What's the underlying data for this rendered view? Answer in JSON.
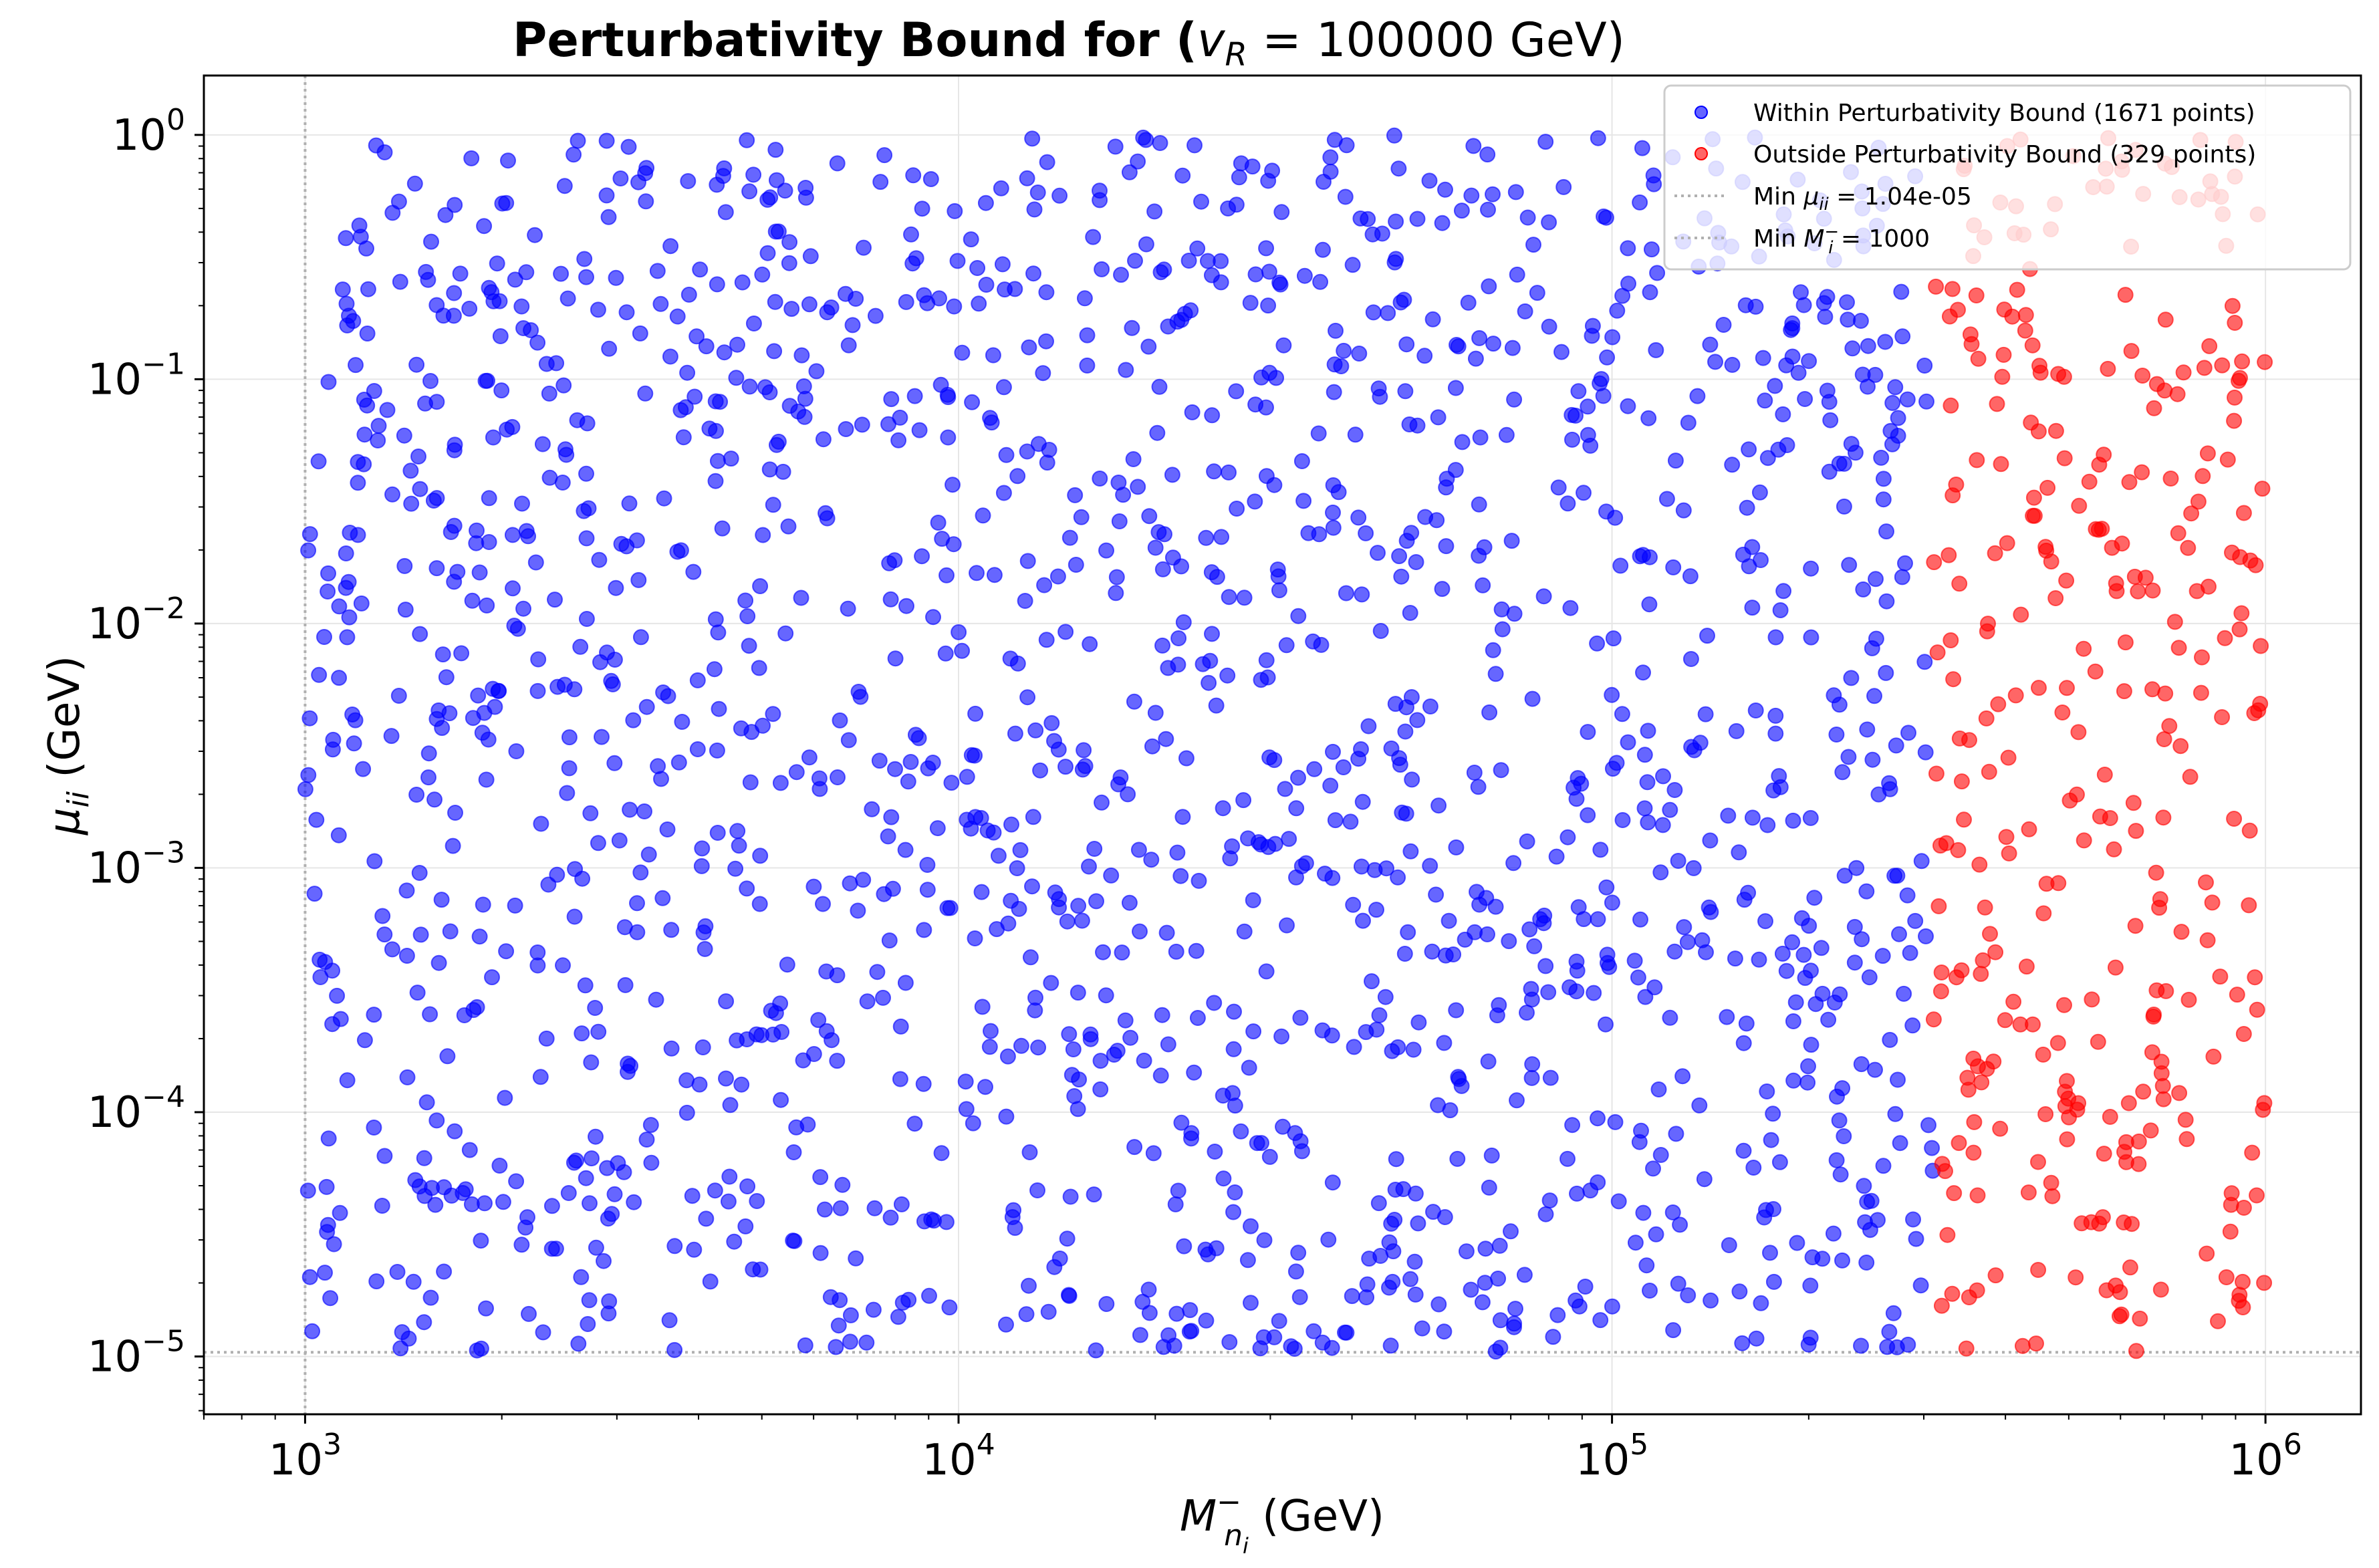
{
  "chart_data": {
    "type": "scatter",
    "title_prefix": "Perturbativity Bound for (",
    "title_math": "v",
    "title_math_sub": "R",
    "title_suffix": " = 100000 GeV)",
    "xlabel_main": "M",
    "xlabel_sup": "−",
    "xlabel_sub": "n",
    "xlabel_subsub": "i",
    "xlabel_unit": "  (GeV)",
    "ylabel_main": "μ",
    "ylabel_sub": "ii",
    "ylabel_unit": " (GeV)",
    "x_scale": "log",
    "y_scale": "log",
    "xlim": [
      700,
      1400000
    ],
    "ylim": [
      5.8e-06,
      1.75
    ],
    "grid": true,
    "legend_position": "top-right",
    "x_ticks": [
      {
        "value": 1000,
        "base": "10",
        "exp": "3"
      },
      {
        "value": 10000,
        "base": "10",
        "exp": "4"
      },
      {
        "value": 100000,
        "base": "10",
        "exp": "5"
      },
      {
        "value": 1000000,
        "base": "10",
        "exp": "6"
      }
    ],
    "y_ticks": [
      {
        "value": 1e-05,
        "base": "10",
        "exp": "−5"
      },
      {
        "value": 0.0001,
        "base": "10",
        "exp": "−4"
      },
      {
        "value": 0.001,
        "base": "10",
        "exp": "−3"
      },
      {
        "value": 0.01,
        "base": "10",
        "exp": "−2"
      },
      {
        "value": 0.1,
        "base": "10",
        "exp": "−1"
      },
      {
        "value": 1,
        "base": "10",
        "exp": "0"
      }
    ],
    "reference_lines": [
      {
        "orientation": "horizontal",
        "value": 1.04e-05,
        "color": "#b0b0b0"
      },
      {
        "orientation": "vertical",
        "value": 1000,
        "color": "#b0b0b0"
      }
    ],
    "series": [
      {
        "name": "Within Perturbativity Bound (1671 points)",
        "color": "#0000ff",
        "count": 1671,
        "x_range": [
          1000,
          310000
        ]
      },
      {
        "name": "Outside Perturbativity Bound (329 points)",
        "color": "#ff0000",
        "count": 329,
        "x_range": [
          310000,
          1000000
        ]
      }
    ],
    "y_range": [
      1.04e-05,
      1.0
    ],
    "legend": [
      {
        "type": "marker",
        "color": "#0000ff",
        "text": "Within Perturbativity Bound (1671 points)"
      },
      {
        "type": "marker",
        "color": "#ff0000",
        "text": "Outside Perturbativity Bound (329 points)"
      },
      {
        "type": "line",
        "color": "#b0b0b0",
        "text_prefix": "Min ",
        "text_math": "μ",
        "text_sub": "ii",
        "text_suffix": " = 1.04e-05"
      },
      {
        "type": "line",
        "color": "#b0b0b0",
        "text_prefix": "Min ",
        "text_math": "M",
        "text_sup": "−",
        "text_sub": "i",
        "text_suffix": " = 1000"
      }
    ]
  }
}
